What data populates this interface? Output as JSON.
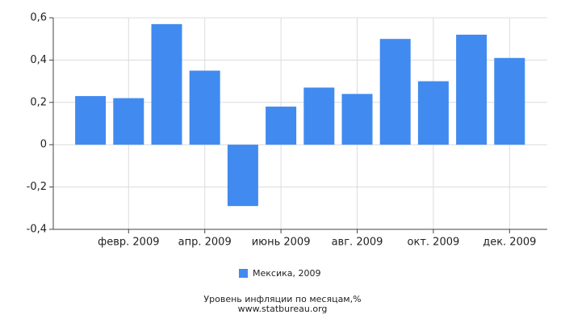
{
  "chart_data": {
    "type": "bar",
    "title": "Уровень инфляции по месяцам,%",
    "source": "www.statbureau.org",
    "categories": [
      null,
      "февр. 2009",
      null,
      "апр. 2009",
      null,
      "июнь 2009",
      null,
      "авг. 2009",
      null,
      "окт. 2009",
      null,
      "дек. 2009"
    ],
    "series": [
      {
        "name": "Мексика, 2009",
        "color": "#418af0",
        "values": [
          0.23,
          0.22,
          0.57,
          0.35,
          -0.29,
          0.18,
          0.27,
          0.24,
          0.5,
          0.3,
          0.52,
          0.41
        ]
      }
    ],
    "ylim": [
      -0.4,
      0.6
    ],
    "yticks": [
      {
        "value": -0.4,
        "label": "-0,4"
      },
      {
        "value": -0.2,
        "label": "-0,2"
      },
      0,
      {
        "value": 0.2,
        "label": "0,2"
      },
      {
        "value": 0.4,
        "label": "0,4"
      },
      {
        "value": 0.6,
        "label": "0,6"
      }
    ],
    "grid": true
  }
}
